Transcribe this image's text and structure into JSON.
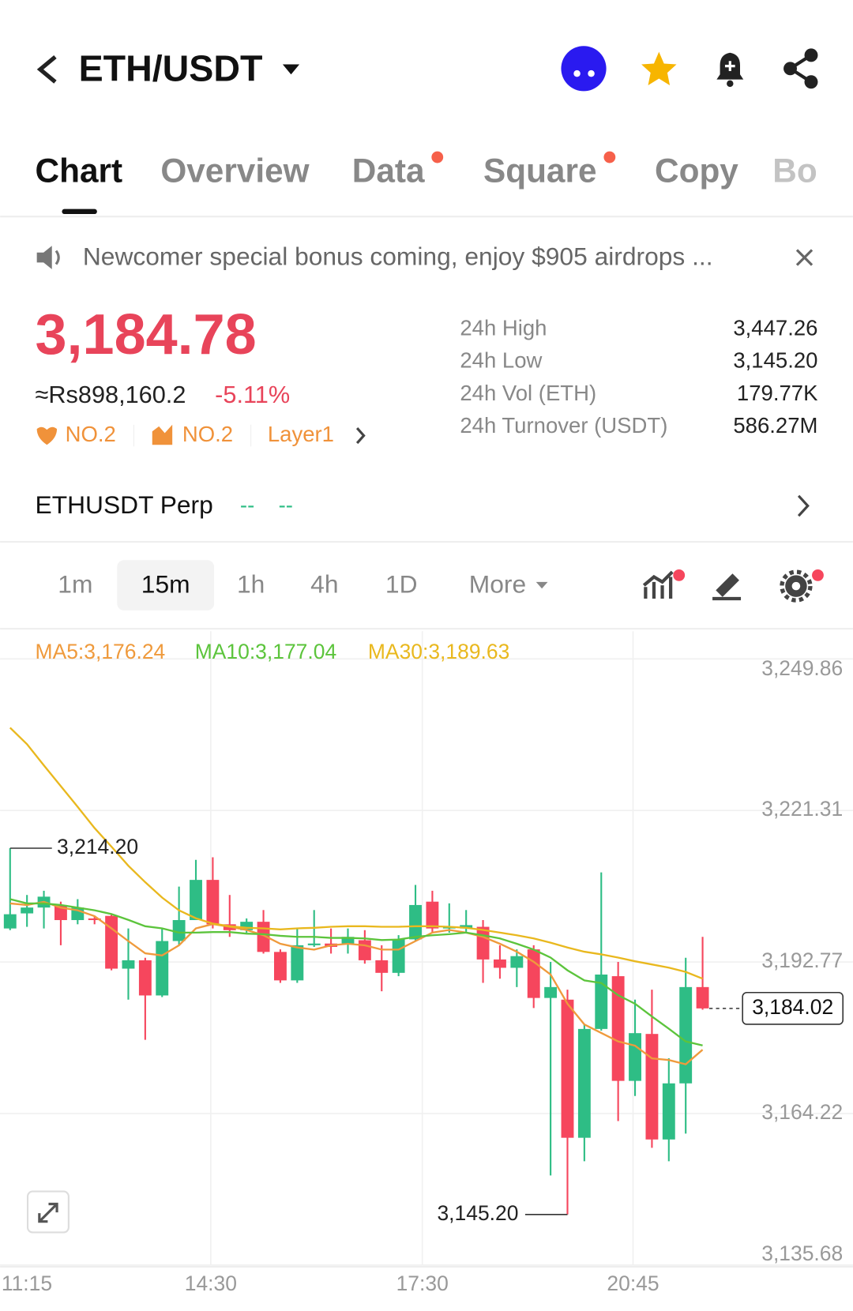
{
  "header": {
    "title": "ETH/USDT"
  },
  "tabs": [
    "Chart",
    "Overview",
    "Data",
    "Square",
    "Copy",
    "Bo"
  ],
  "banner": "Newcomer special bonus coming, enjoy $905 airdrops ...",
  "price": {
    "last": "3,184.78",
    "fiat": "≈Rs898,160.2",
    "change": "-5.11%",
    "tags": [
      "NO.2",
      "NO.2",
      "Layer1"
    ]
  },
  "stats": [
    {
      "label": "24h High",
      "value": "3,447.26"
    },
    {
      "label": "24h Low",
      "value": "3,145.20"
    },
    {
      "label": "24h Vol (ETH)",
      "value": "179.77K"
    },
    {
      "label": "24h Turnover (USDT)",
      "value": "586.27M"
    }
  ],
  "perp": {
    "name": "ETHUSDT Perp",
    "values": [
      "--",
      "--"
    ]
  },
  "timeframes": {
    "options": [
      "1m",
      "15m",
      "1h",
      "4h",
      "1D",
      "More"
    ],
    "selected_index": 1
  },
  "chart_data": {
    "type": "candlestick",
    "up_color": "#2ebd85",
    "down_color": "#f6465d",
    "open": [
      3199.08,
      3201.92,
      3203.02,
      3203.5,
      3200.66,
      3200.97,
      3201.45,
      3191.51,
      3193.09,
      3186.46,
      3196.71,
      3200.66,
      3208.23,
      3199.87,
      3198.76,
      3200.34,
      3194.66,
      3189.3,
      3195.92,
      3196.24,
      3196.24,
      3196.87,
      3193.09,
      3190.72,
      3197.03,
      3204.13,
      3199.08,
      3199.08,
      3199.39,
      3193.24,
      3191.67,
      3195.14,
      3185.99,
      3185.67,
      3159.65,
      3180.15,
      3190.09,
      3170.37,
      3179.21,
      3159.33,
      3169.9,
      3188.04
    ],
    "high": [
      3214.2,
      3205.39,
      3206.18,
      3204.13,
      3204.6,
      3201.45,
      3201.76,
      3199.08,
      3193.56,
      3199.08,
      3206.97,
      3212.01,
      3212.49,
      3205.39,
      3200.97,
      3202.55,
      3195.14,
      3199.08,
      3202.55,
      3199.08,
      3199.08,
      3198.76,
      3195.92,
      3197.82,
      3207.28,
      3206.18,
      3203.81,
      3202.55,
      3200.66,
      3195.92,
      3195.14,
      3195.92,
      3192.77,
      3187.56,
      3180.94,
      3209.65,
      3192.77,
      3185.67,
      3187.56,
      3174.63,
      3193.56,
      3197.5
    ],
    "low": [
      3198.76,
      3199.39,
      3199.08,
      3195.92,
      3199.87,
      3199.87,
      3191.19,
      3185.67,
      3178.1,
      3186.15,
      3195.92,
      3200.66,
      3199.08,
      3197.5,
      3198.29,
      3194.35,
      3188.83,
      3188.83,
      3195.61,
      3194.35,
      3194.35,
      3192.45,
      3187.25,
      3190.09,
      3196.71,
      3198.29,
      3198.29,
      3198.29,
      3188.83,
      3189.62,
      3188.04,
      3184.09,
      3152.55,
      3145.2,
      3155.23,
      3179.84,
      3162.8,
      3167.53,
      3157.75,
      3155.23,
      3160.44,
      3183.78
    ],
    "close": [
      3201.76,
      3203.02,
      3205.07,
      3200.66,
      3203.02,
      3200.66,
      3191.51,
      3193.09,
      3186.46,
      3196.71,
      3200.66,
      3208.23,
      3199.87,
      3198.76,
      3200.34,
      3194.66,
      3189.3,
      3195.92,
      3196.24,
      3195.61,
      3197.5,
      3193.09,
      3190.72,
      3197.03,
      3203.5,
      3199.08,
      3199.39,
      3199.71,
      3193.24,
      3191.67,
      3193.87,
      3185.99,
      3188.04,
      3159.65,
      3180.15,
      3190.4,
      3170.37,
      3179.36,
      3159.33,
      3169.9,
      3188.04,
      3184.02
    ],
    "series": [
      {
        "name": "MA5",
        "legend_label": "MA5:3,176.24",
        "color": "#ef9a3c",
        "values": [
          3203.8,
          3203.5,
          3204.1,
          3203.0,
          3202.5,
          3201.4,
          3199.1,
          3196.7,
          3194.4,
          3194.0,
          3195.9,
          3199.1,
          3199.9,
          3199.4,
          3198.8,
          3197.8,
          3196.2,
          3195.5,
          3195.1,
          3195.9,
          3196.2,
          3195.9,
          3195.1,
          3195.1,
          3196.7,
          3198.3,
          3198.8,
          3198.3,
          3197.5,
          3196.2,
          3194.7,
          3192.8,
          3190.4,
          3184.9,
          3181.0,
          3179.4,
          3177.8,
          3177.0,
          3174.6,
          3174.3,
          3173.5,
          3176.24
        ]
      },
      {
        "name": "MA10",
        "legend_label": "MA10:3,177.04",
        "color": "#5cc43c",
        "values": [
          3204.6,
          3203.8,
          3203.8,
          3203.5,
          3203.0,
          3202.5,
          3201.8,
          3200.7,
          3199.5,
          3199.1,
          3198.3,
          3198.3,
          3198.4,
          3198.4,
          3198.1,
          3198.0,
          3197.7,
          3197.5,
          3197.5,
          3197.3,
          3197.3,
          3197.2,
          3196.9,
          3197.0,
          3197.5,
          3197.8,
          3198.0,
          3198.3,
          3197.8,
          3197.2,
          3196.2,
          3195.1,
          3193.6,
          3191.2,
          3189.3,
          3188.8,
          3186.5,
          3184.9,
          3182.5,
          3180.2,
          3177.8,
          3177.04
        ]
      },
      {
        "name": "MA30",
        "legend_label": "MA30:3,189.63",
        "color": "#e9b81e",
        "values": [
          3236.9,
          3233.8,
          3229.8,
          3225.9,
          3222.0,
          3218.0,
          3214.5,
          3210.9,
          3207.8,
          3204.9,
          3202.5,
          3201.0,
          3200.0,
          3199.5,
          3199.2,
          3199.1,
          3198.9,
          3199.1,
          3199.2,
          3199.4,
          3199.5,
          3199.5,
          3199.4,
          3199.4,
          3199.5,
          3199.5,
          3199.4,
          3199.2,
          3198.8,
          3198.3,
          3197.8,
          3197.2,
          3196.4,
          3195.5,
          3194.7,
          3194.2,
          3193.6,
          3192.9,
          3192.3,
          3191.7,
          3190.9,
          3189.63
        ]
      }
    ],
    "ylim": [
      3135.68,
      3255.07
    ],
    "yticks": [
      {
        "value": 3249.86,
        "label": "3,249.86"
      },
      {
        "value": 3221.31,
        "label": "3,221.31"
      },
      {
        "value": 3192.77,
        "label": "3,192.77"
      },
      {
        "value": 3164.22,
        "label": "3,164.22"
      },
      {
        "value": 3135.68,
        "label": "3,135.68"
      }
    ],
    "x_labels": [
      "11:15",
      "14:30",
      "17:30",
      "20:45"
    ],
    "grid": true,
    "annotations": {
      "high": {
        "value": 3214.2,
        "label": "3,214.20"
      },
      "low": {
        "value": 3145.2,
        "label": "3,145.20"
      },
      "current": {
        "value": 3184.02,
        "label": "3,184.02"
      }
    }
  }
}
